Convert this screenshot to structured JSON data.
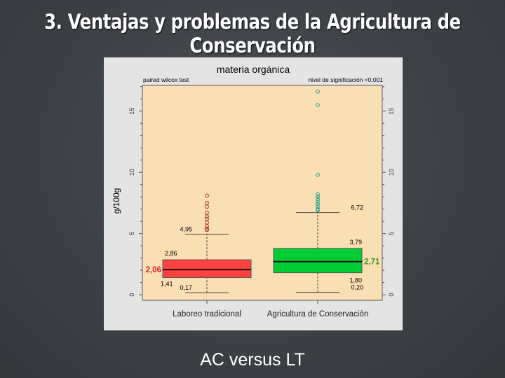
{
  "slide": {
    "title": "3. Ventajas y problemas de la Agricultura de Conservación",
    "caption": "AC versus LT"
  },
  "chart_data": {
    "type": "boxplot",
    "title": "materia orgánica",
    "subtitle_left": "paired wilcox test",
    "subtitle_right": "nivel de significación <0,001",
    "ylabel": "g/100g",
    "ylim": [
      -0.45,
      17.1
    ],
    "yticks": [
      0,
      5,
      10,
      15
    ],
    "background_color": "#fbdfb4",
    "categories": [
      "Laboreo tradicional",
      "Agricultura de Conservación"
    ],
    "series": [
      {
        "category": "Laboreo tradicional",
        "color": "#ff4040",
        "median_label_color": "#e02020",
        "outlier_color": "#a03030",
        "whisker_low": 0.17,
        "q1": 1.41,
        "median": 2.06,
        "q3": 2.86,
        "whisker_high": 4.95,
        "labels": {
          "whisker_low": "0,17",
          "q1": "1,41",
          "median": "2,06",
          "q3": "2,86",
          "whisker_high": "4,95"
        },
        "outliers": [
          8.1,
          7.5,
          7.2,
          6.7,
          6.4,
          6.2,
          5.9,
          5.6,
          5.4,
          5.3
        ]
      },
      {
        "category": "Agricultura de Conservación",
        "color": "#00cc33",
        "median_label_color": "#3a9a20",
        "outlier_color": "#20a080",
        "whisker_low": 0.2,
        "q1": 1.8,
        "median": 2.71,
        "q3": 3.79,
        "whisker_high": 6.72,
        "labels": {
          "whisker_low": "0,20",
          "q1": "1,80",
          "median": "2,71",
          "q3": "3,79",
          "whisker_high": "6,72"
        },
        "outliers": [
          16.6,
          15.5,
          9.8,
          8.2,
          8.0,
          7.8,
          7.6,
          7.4,
          7.2,
          7.0,
          6.9
        ]
      }
    ]
  }
}
